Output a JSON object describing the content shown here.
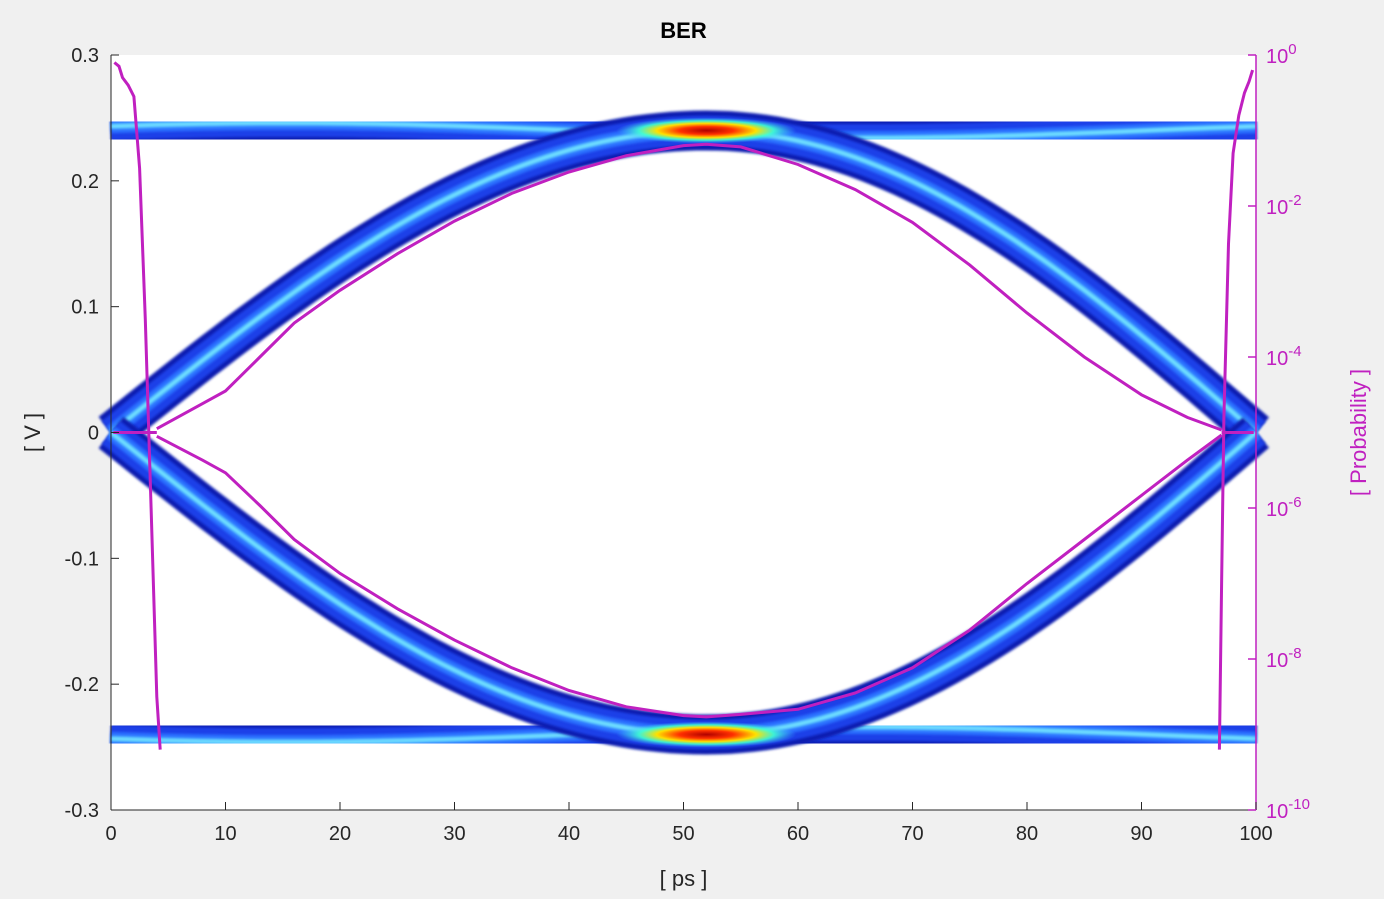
{
  "chart_data": {
    "type": "heatmap",
    "title": "BER",
    "xlabel": "[ ps ]",
    "ylabel": "[ V ]",
    "y2label": "[ Probability ]",
    "xlim": [
      0,
      100
    ],
    "ylim": [
      -0.3,
      0.3
    ],
    "y2lim_log10": [
      -10,
      0
    ],
    "y2scale": "log",
    "xticks": [
      0,
      10,
      20,
      30,
      40,
      50,
      60,
      70,
      80,
      90,
      100
    ],
    "xtick_labels": [
      "0",
      "10",
      "20",
      "30",
      "40",
      "50",
      "60",
      "70",
      "80",
      "90",
      "100"
    ],
    "yticks": [
      -0.3,
      -0.2,
      -0.1,
      0,
      0.1,
      0.2,
      0.3
    ],
    "ytick_labels": [
      "-0.3",
      "-0.2",
      "-0.1",
      "0",
      "0.1",
      "0.2",
      "0.3"
    ],
    "y2ticks_exp": [
      -10,
      -8,
      -6,
      -4,
      -2,
      0
    ],
    "y2tick_bases": [
      "10",
      "10",
      "10",
      "10",
      "10",
      "10"
    ],
    "y2tick_exps": [
      "-10",
      "-8",
      "-6",
      "-4",
      "-2",
      "0"
    ],
    "grid": false,
    "colors": {
      "axes": "#262626",
      "contour": "#c020c0",
      "background": "#ffffff",
      "figure": "#f0f0f0"
    },
    "eye_levels_v": [
      0.24,
      -0.24
    ],
    "crossing_times_ps": [
      0,
      52,
      100
    ],
    "contour_upper": {
      "x": [
        4,
        8,
        10,
        13,
        16,
        20,
        25,
        30,
        35,
        40,
        45,
        50,
        52,
        55,
        60,
        65,
        70,
        75,
        80,
        85,
        90,
        94,
        97
      ],
      "y": [
        0.003,
        0.023,
        0.033,
        0.06,
        0.087,
        0.113,
        0.142,
        0.168,
        0.19,
        0.207,
        0.22,
        0.228,
        0.229,
        0.227,
        0.213,
        0.193,
        0.167,
        0.133,
        0.095,
        0.06,
        0.03,
        0.012,
        0.002
      ]
    },
    "contour_lower": {
      "x": [
        4,
        8,
        10,
        13,
        16,
        20,
        25,
        30,
        35,
        40,
        45,
        50,
        52,
        55,
        60,
        65,
        70,
        75,
        80,
        85,
        90,
        94,
        97
      ],
      "y": [
        -0.003,
        -0.022,
        -0.032,
        -0.058,
        -0.085,
        -0.112,
        -0.14,
        -0.165,
        -0.187,
        -0.205,
        -0.218,
        -0.225,
        -0.226,
        -0.224,
        -0.22,
        -0.207,
        -0.187,
        -0.157,
        -0.12,
        -0.085,
        -0.05,
        -0.022,
        -0.002
      ]
    },
    "ber_left": {
      "x": [
        0.3,
        0.7,
        1.0,
        1.5,
        2.0,
        2.5,
        3.0,
        3.5,
        4.0,
        4.3
      ],
      "log10p": [
        -0.1,
        -0.15,
        -0.3,
        -0.4,
        -0.55,
        -1.5,
        -3.5,
        -6,
        -8.5,
        -9.2
      ]
    },
    "ber_right": {
      "x": [
        99.7,
        99.4,
        99.0,
        98.5,
        98.0,
        97.6,
        97.2,
        97.0,
        96.8
      ],
      "log10p": [
        -0.2,
        -0.35,
        -0.5,
        -0.8,
        -1.3,
        -2.5,
        -4.8,
        -7,
        -9.2
      ]
    }
  }
}
